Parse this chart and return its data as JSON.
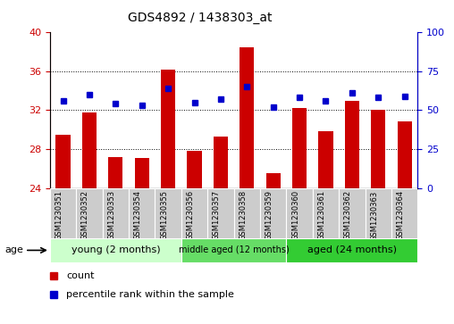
{
  "title": "GDS4892 / 1438303_at",
  "samples": [
    "GSM1230351",
    "GSM1230352",
    "GSM1230353",
    "GSM1230354",
    "GSM1230355",
    "GSM1230356",
    "GSM1230357",
    "GSM1230358",
    "GSM1230359",
    "GSM1230360",
    "GSM1230361",
    "GSM1230362",
    "GSM1230363",
    "GSM1230364"
  ],
  "counts": [
    29.5,
    31.8,
    27.2,
    27.1,
    36.2,
    27.8,
    29.3,
    38.5,
    25.5,
    32.2,
    29.8,
    33.0,
    32.0,
    30.8
  ],
  "percentile_ranks": [
    56,
    60,
    54,
    53,
    64,
    55,
    57,
    65,
    52,
    58,
    56,
    61,
    58,
    59
  ],
  "ylim_left": [
    24,
    40
  ],
  "ylim_right": [
    0,
    100
  ],
  "yticks_left": [
    24,
    28,
    32,
    36,
    40
  ],
  "yticks_right": [
    0,
    25,
    50,
    75,
    100
  ],
  "bar_color": "#CC0000",
  "dot_color": "#0000CC",
  "bar_bottom": 24,
  "groups": [
    {
      "label": "young (2 months)",
      "start": 0,
      "end": 5,
      "color": "#ccffcc"
    },
    {
      "label": "middle aged (12 months)",
      "start": 5,
      "end": 9,
      "color": "#66dd66"
    },
    {
      "label": "aged (24 months)",
      "start": 9,
      "end": 14,
      "color": "#33cc33"
    }
  ],
  "tick_label_color_left": "#CC0000",
  "tick_label_color_right": "#0000CC",
  "sample_box_color": "#cccccc",
  "legend_count_color": "#CC0000",
  "legend_dot_color": "#0000CC"
}
